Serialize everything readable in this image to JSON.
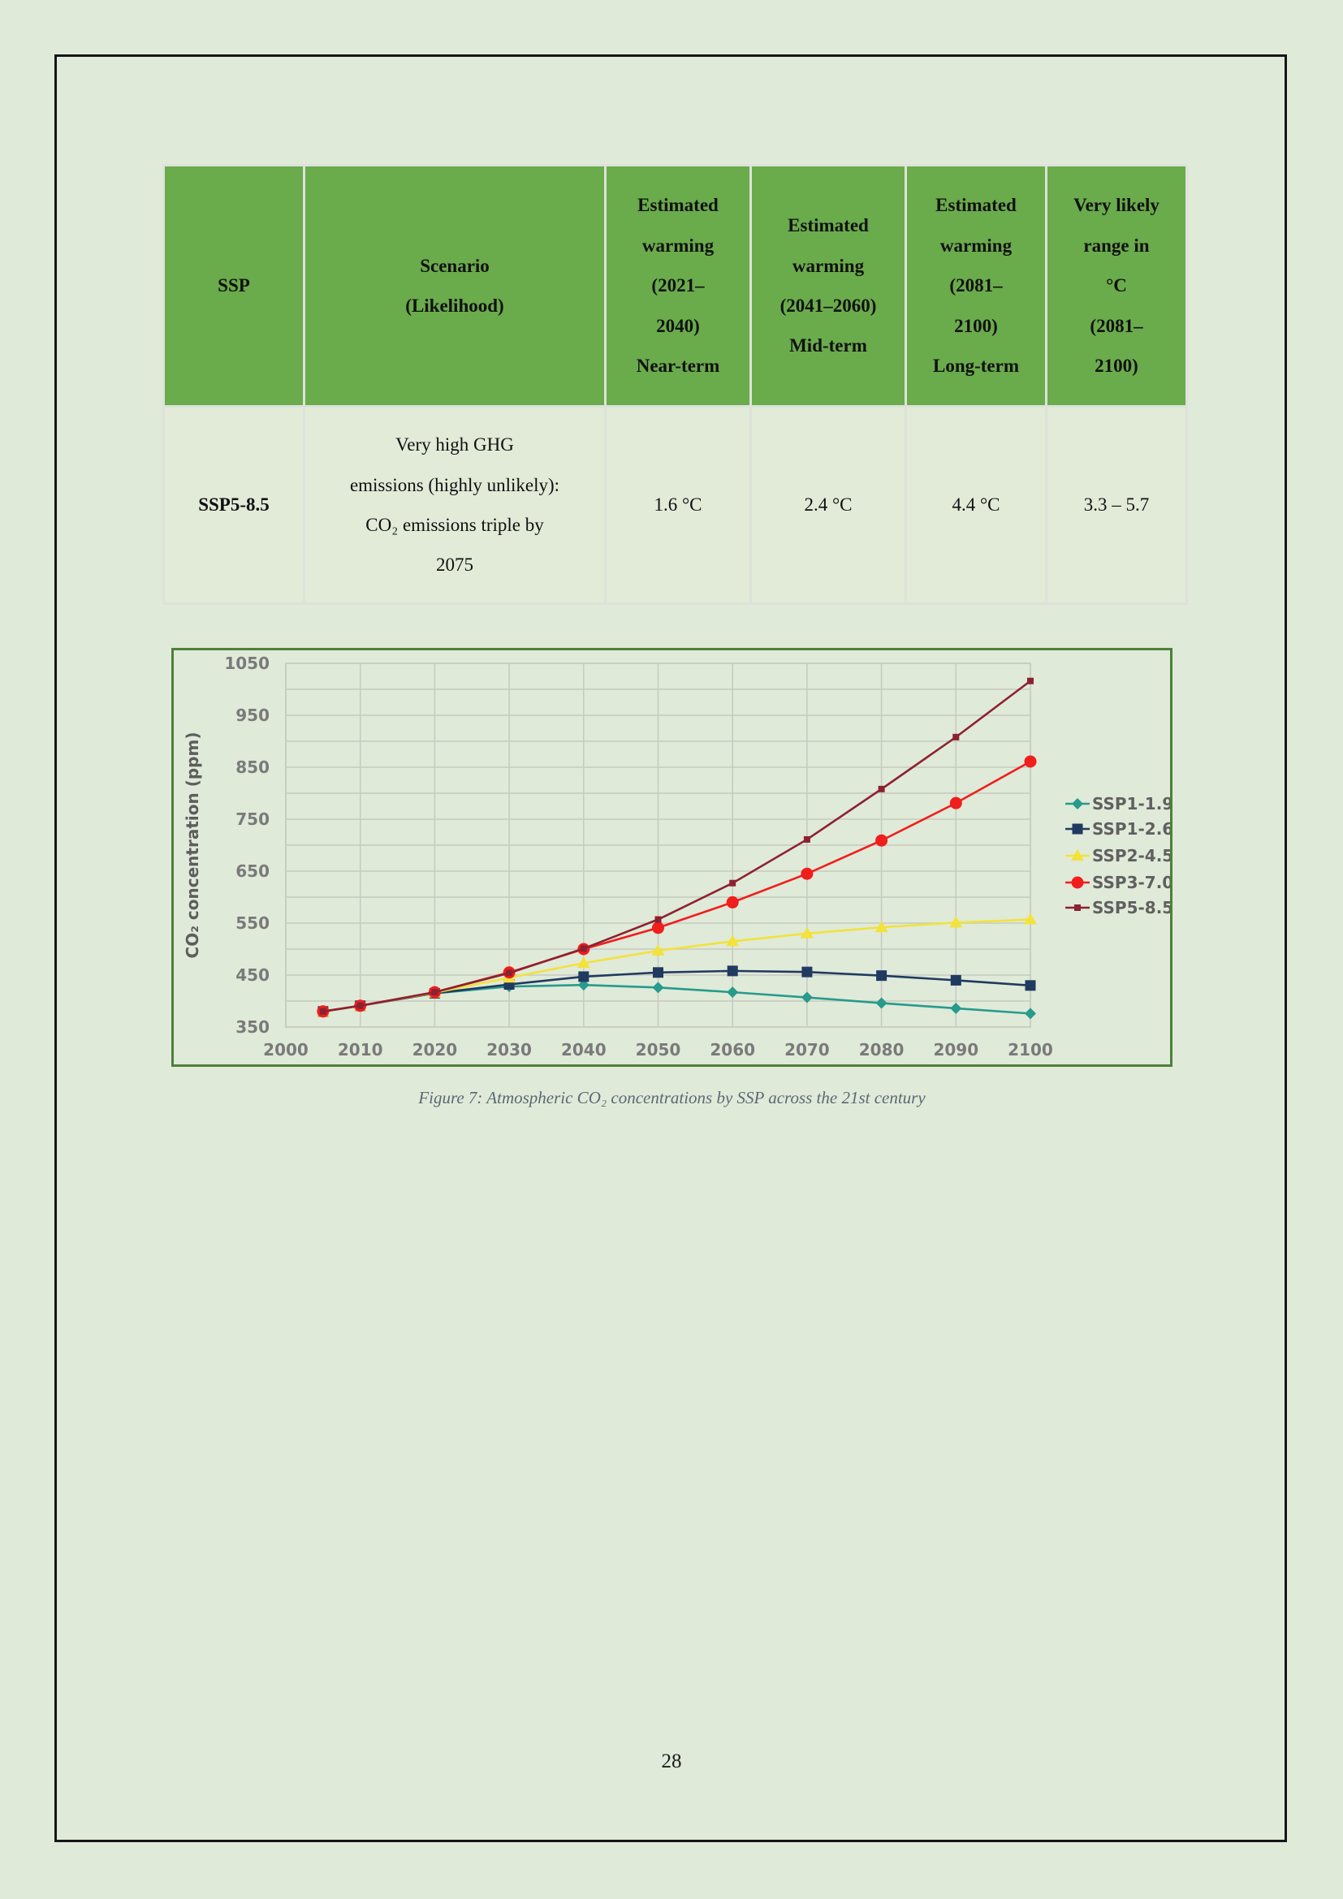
{
  "page": {
    "number": "28"
  },
  "table": {
    "header_bg": "#6aab4c",
    "columns": [
      {
        "header": "SSP",
        "value": "SSP5-8.5"
      },
      {
        "header": "Scenario\n(Likelihood)",
        "value": "Very high GHG\nemissions (highly unlikely):\nCO₂ emissions triple by\n2075"
      },
      {
        "header": "Estimated\nwarming\n(2021–\n2040)\nNear-term",
        "value": "1.6 °C"
      },
      {
        "header": "Estimated\nwarming\n(2041–2060)\nMid-term",
        "value": "2.4 °C"
      },
      {
        "header": "Estimated\nwarming\n(2081–\n2100)\nLong-term",
        "value": "4.4 °C"
      },
      {
        "header": "Very likely\nrange in\n°C\n(2081–\n2100)",
        "value": "3.3 – 5.7"
      }
    ]
  },
  "figure": {
    "caption": "Figure 7: Atmospheric CO₂ concentrations by SSP across the 21st century"
  },
  "chart_data": {
    "type": "line",
    "title": "",
    "xlabel": "",
    "ylabel": "CO₂ concentration (ppm)",
    "xlim": [
      2000,
      2100
    ],
    "ylim": [
      350,
      1050
    ],
    "x_grid_step": 10,
    "y_grid_step": 50,
    "grid": true,
    "legend_position": "right",
    "x_tick_labels": [
      2000,
      2010,
      2020,
      2030,
      2040,
      2050,
      2060,
      2070,
      2080,
      2090,
      2100
    ],
    "y_tick_labels": [
      350,
      450,
      550,
      650,
      750,
      850,
      950,
      1050
    ],
    "x": [
      2005,
      2010,
      2020,
      2030,
      2040,
      2050,
      2060,
      2070,
      2080,
      2090,
      2100
    ],
    "series": [
      {
        "name": "SSP1-1.9",
        "color": "#279b8c",
        "marker": "diamond",
        "values": [
          380,
          391,
          415,
          428,
          431,
          426,
          417,
          407,
          396,
          386,
          376
        ]
      },
      {
        "name": "SSP1-2.6",
        "color": "#203a60",
        "marker": "square",
        "values": [
          380,
          391,
          415,
          432,
          447,
          455,
          458,
          456,
          449,
          440,
          430
        ]
      },
      {
        "name": "SSP2-4.5",
        "color": "#f2e23b",
        "marker": "triangle",
        "values": [
          380,
          391,
          416,
          445,
          473,
          497,
          515,
          530,
          542,
          551,
          557
        ]
      },
      {
        "name": "SSP3-7.0",
        "color": "#f01e1c",
        "marker": "circle",
        "values": [
          380,
          391,
          417,
          455,
          500,
          541,
          590,
          645,
          709,
          781,
          861
        ]
      },
      {
        "name": "SSP5-8.5",
        "color": "#8c2231",
        "marker": "square-small",
        "values": [
          380,
          391,
          417,
          454,
          501,
          557,
          627,
          711,
          808,
          908,
          1016
        ]
      }
    ]
  }
}
